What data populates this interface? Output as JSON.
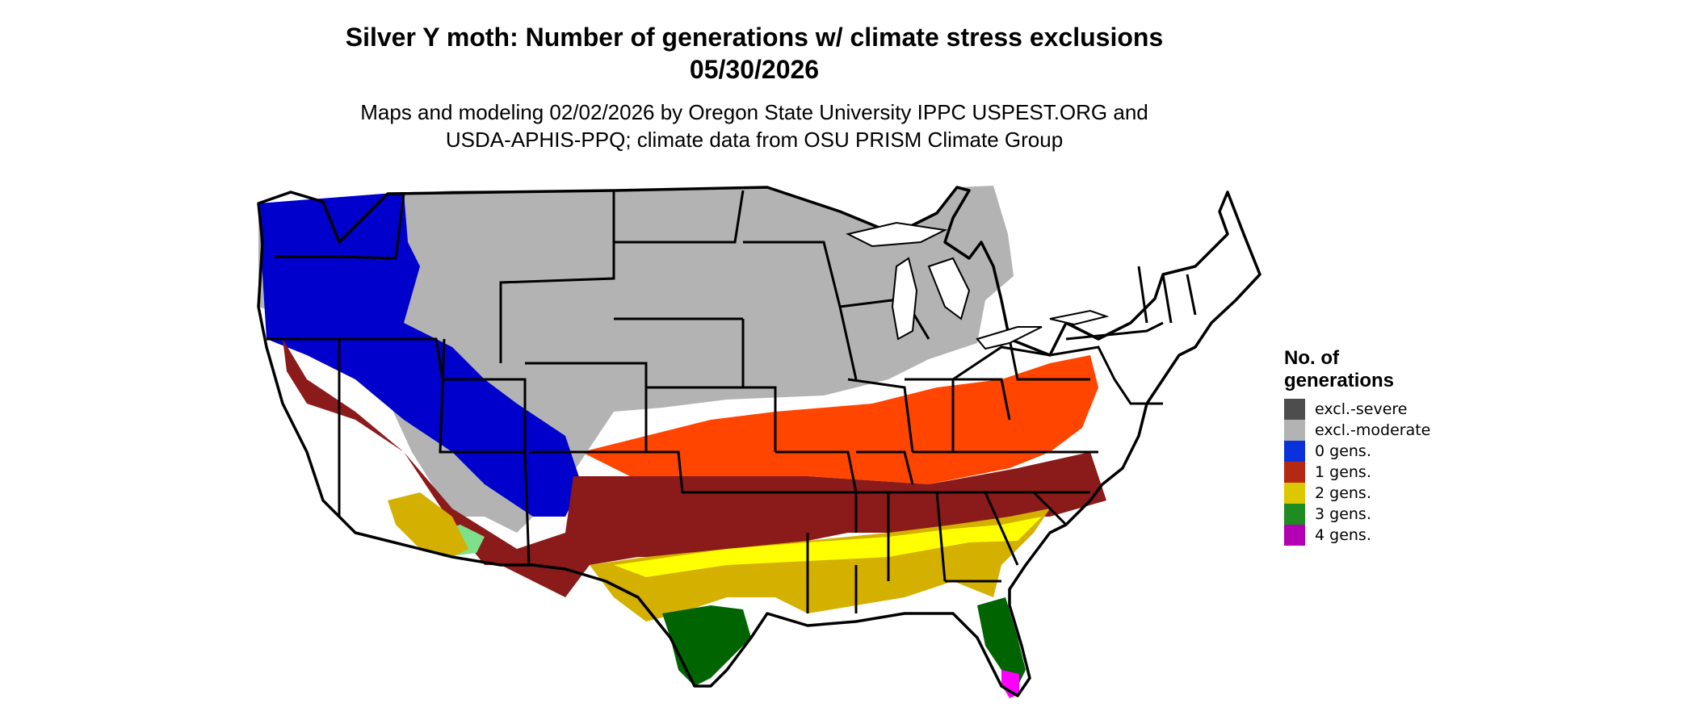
{
  "map": {
    "title_line1": "Silver Y moth: Number of generations w/ climate stress exclusions",
    "title_line2": "05/30/2026",
    "subtitle_line1": "Maps and modeling 02/02/2026 by Oregon State University IPPC USPEST.ORG and",
    "subtitle_line2": "USDA-APHIS-PPQ; climate data from OSU PRISM Climate Group",
    "region": "Contiguous United States"
  },
  "legend": {
    "title_line1": "No. of",
    "title_line2": "generations",
    "items": [
      {
        "label": "excl.-severe",
        "color": "#4d4d4d"
      },
      {
        "label": "excl.-moderate",
        "color": "#b3b3b3"
      },
      {
        "label": "0 gens.",
        "color": "#0a32dc"
      },
      {
        "label": "1 gens.",
        "color": "#b42814"
      },
      {
        "label": "2 gens.",
        "color": "#dcc800"
      },
      {
        "label": "3 gens.",
        "color": "#1e8c1e"
      },
      {
        "label": "4 gens.",
        "color": "#b400b4"
      }
    ]
  },
  "colors": {
    "excl_moderate": "#b3b3b3",
    "gens_0": "#0000cd",
    "gens_1_dark": "#8b1a1a",
    "gens_1_light": "#ff4500",
    "gens_2": "#d4b000",
    "gens_2_light": "#ffff00",
    "gens_3": "#006400",
    "gens_3_light": "#7ee08a",
    "gens_4": "#ff00ff",
    "state_border": "#000000"
  }
}
